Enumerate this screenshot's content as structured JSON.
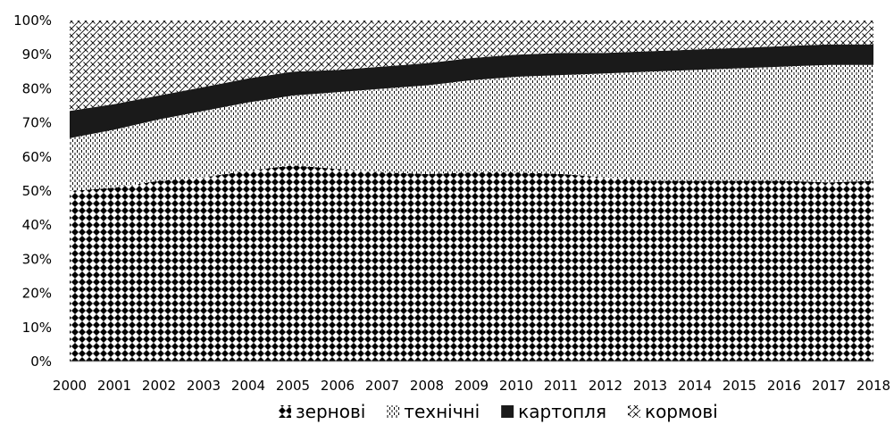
{
  "chart_data": {
    "type": "area",
    "stacked": "percent",
    "categories": [
      "2000",
      "2001",
      "2002",
      "2003",
      "2004",
      "2005",
      "2006",
      "2007",
      "2008",
      "2009",
      "2010",
      "2011",
      "2012",
      "2013",
      "2014",
      "2015",
      "2016",
      "2017",
      "2018"
    ],
    "ylim": [
      0,
      100
    ],
    "yticks": [
      "0%",
      "10%",
      "20%",
      "30%",
      "40%",
      "50%",
      "60%",
      "70%",
      "80%",
      "90%",
      "100%"
    ],
    "grid": false,
    "legend_position": "bottom",
    "series": [
      {
        "name": "зернові",
        "pattern": "diamond-grid",
        "values": [
          50,
          51,
          53,
          54,
          56,
          57.5,
          56.5,
          55.5,
          55,
          55.5,
          55.5,
          55,
          54,
          53,
          53,
          53,
          53,
          52.5,
          53
        ]
      },
      {
        "name": "технічні",
        "pattern": "vertical-dash",
        "values": [
          15.5,
          17,
          18,
          19.5,
          20,
          20.5,
          22.5,
          24.5,
          26,
          27,
          28,
          29,
          30.5,
          32,
          32.5,
          33,
          33.5,
          34.5,
          34
        ]
      },
      {
        "name": "картопля",
        "pattern": "solid",
        "color": "#1a1a1a",
        "values": [
          8,
          7.5,
          7,
          7,
          7,
          7,
          6.5,
          6.5,
          6.5,
          6.5,
          6.5,
          6.5,
          6,
          6,
          6,
          6,
          6,
          6,
          6
        ]
      },
      {
        "name": "кормові",
        "pattern": "diagonal-cross",
        "values": [
          26.5,
          24.5,
          22,
          19.5,
          17,
          15,
          14.5,
          13.5,
          12.5,
          11,
          10,
          9.5,
          9.5,
          9,
          8.5,
          8,
          7.5,
          7,
          7
        ]
      }
    ]
  }
}
